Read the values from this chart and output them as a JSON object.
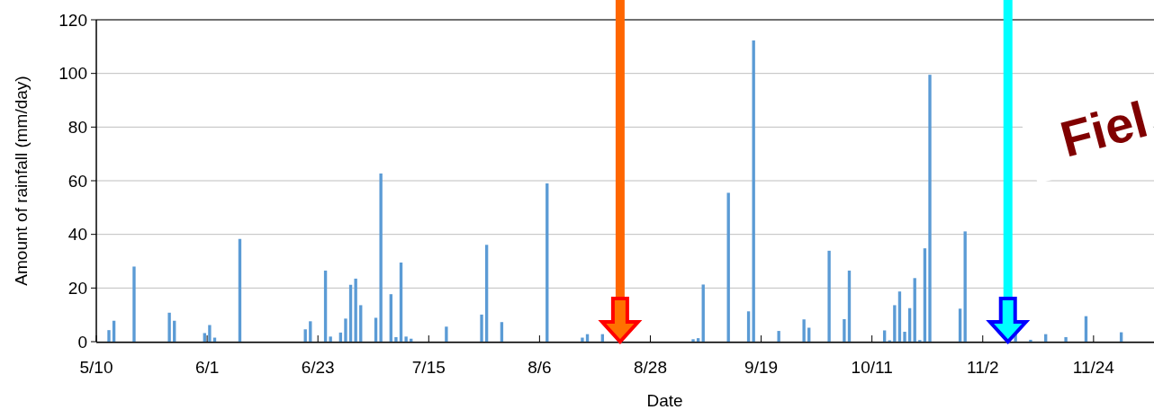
{
  "chart_data": {
    "type": "bar",
    "xlabel": "Date",
    "ylabel": "Amount of rainfall (mm/day)",
    "x": [
      "--05-12",
      "--05-13",
      "--05-17",
      "--05-24",
      "--05-25",
      "--05-31",
      "--06-01",
      "--06-02",
      "--06-07",
      "--06-20",
      "--06-21",
      "--06-24",
      "--06-25",
      "--06-27",
      "--06-28",
      "--06-29",
      "--06-30",
      "--07-01",
      "--07-04",
      "--07-05",
      "--07-07",
      "--07-08",
      "--07-09",
      "--07-10",
      "--07-11",
      "--07-18",
      "--07-25",
      "--07-26",
      "--07-29",
      "--08-07",
      "--08-14",
      "--08-15",
      "--08-18",
      "--09-05",
      "--09-06",
      "--09-07",
      "--09-12",
      "--09-16",
      "--09-17",
      "--09-22",
      "--09-27",
      "--09-28",
      "--10-02",
      "--10-05",
      "--10-06",
      "--10-13",
      "--10-14",
      "--10-15",
      "--10-16",
      "--10-17",
      "--10-18",
      "--10-19",
      "--10-20",
      "--10-21",
      "--10-22",
      "--10-28",
      "--10-29",
      "--11-08",
      "--11-11",
      "--11-14",
      "--11-18",
      "--11-22",
      "--11-29"
    ],
    "values": [
      4.3,
      7.8,
      28,
      10.8,
      7.8,
      3.2,
      6.2,
      1.5,
      38.3,
      4.6,
      7.6,
      26.5,
      1.9,
      3.4,
      8.6,
      21.2,
      23.5,
      13.6,
      8.9,
      62.7,
      17.7,
      1.7,
      29.5,
      1.9,
      1.1,
      5.6,
      10.1,
      36.1,
      7.3,
      59,
      1.5,
      2.8,
      2.8,
      0.9,
      1.3,
      21.3,
      55.5,
      11.3,
      112.3,
      4,
      8.3,
      5.2,
      33.9,
      8.4,
      26.5,
      4.2,
      0.5,
      13.6,
      18.7,
      3.7,
      12.5,
      23.7,
      0.6,
      34.8,
      99.5,
      12.3,
      41.1,
      2.8,
      0.7,
      2.8,
      1.7,
      9.5,
      3.5
    ],
    "color": "#5b9bd5",
    "xlim": [
      "--05-10",
      "--12-06"
    ],
    "xticks": [
      {
        "value": "--05-10",
        "label": "5/10"
      },
      {
        "value": "--06-01",
        "label": "6/1"
      },
      {
        "value": "--06-23",
        "label": "6/23"
      },
      {
        "value": "--07-15",
        "label": "7/15"
      },
      {
        "value": "--08-06",
        "label": "8/6"
      },
      {
        "value": "--08-28",
        "label": "8/28"
      },
      {
        "value": "--09-19",
        "label": "9/19"
      },
      {
        "value": "--10-11",
        "label": "10/11"
      },
      {
        "value": "--11-02",
        "label": "11/2"
      },
      {
        "value": "--11-24",
        "label": "11/24"
      }
    ],
    "ylim": [
      0,
      120
    ],
    "yticks": [
      0,
      20,
      40,
      60,
      80,
      100,
      120
    ],
    "grid": "y",
    "ref_lines": [
      {
        "axis": "x",
        "value": "--08-22",
        "color": "#ff6600"
      },
      {
        "axis": "x",
        "value": "--11-07",
        "color": "#00ffff"
      }
    ],
    "annotations": [
      "Fiel"
    ]
  }
}
